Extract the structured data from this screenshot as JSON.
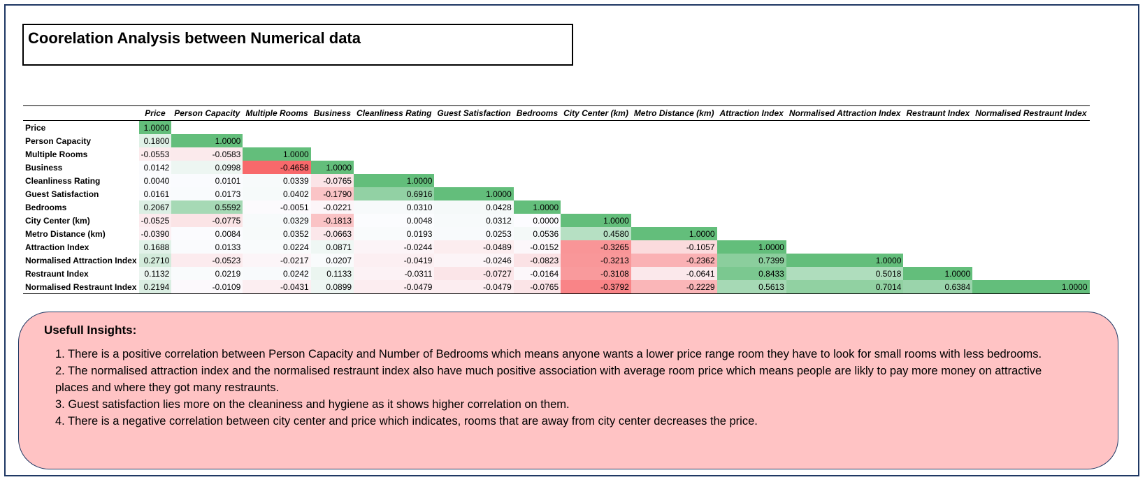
{
  "title": "Coorelation Analysis between Numerical data",
  "columns": [
    "Price",
    "Person Capacity",
    "Multiple Rooms",
    "Business",
    "Cleanliness Rating",
    "Guest Satisfaction",
    "Bedrooms",
    "City Center (km)",
    "Metro Distance (km)",
    "Attraction Index",
    "Normalised Attraction Index",
    "Restraunt Index",
    "Normalised Restraunt Index"
  ],
  "rows": [
    {
      "label": "Price",
      "values": [
        "1.0000"
      ]
    },
    {
      "label": "Person Capacity",
      "values": [
        "0.1800",
        "1.0000"
      ]
    },
    {
      "label": "Multiple Rooms",
      "values": [
        "-0.0553",
        "-0.0583",
        "1.0000"
      ]
    },
    {
      "label": "Business",
      "values": [
        "0.0142",
        "0.0998",
        "-0.4658",
        "1.0000"
      ]
    },
    {
      "label": "Cleanliness Rating",
      "values": [
        "0.0040",
        "0.0101",
        "0.0339",
        "-0.0765",
        "1.0000"
      ]
    },
    {
      "label": "Guest Satisfaction",
      "values": [
        "0.0161",
        "0.0173",
        "0.0402",
        "-0.1790",
        "0.6916",
        "1.0000"
      ]
    },
    {
      "label": "Bedrooms",
      "values": [
        "0.2067",
        "0.5592",
        "-0.0051",
        "-0.0221",
        "0.0310",
        "0.0428",
        "1.0000"
      ]
    },
    {
      "label": "City Center (km)",
      "values": [
        "-0.0525",
        "-0.0775",
        "0.0329",
        "-0.1813",
        "0.0048",
        "0.0312",
        "0.0000",
        "1.0000"
      ]
    },
    {
      "label": "Metro Distance (km)",
      "values": [
        "-0.0390",
        "0.0084",
        "0.0352",
        "-0.0663",
        "0.0193",
        "0.0253",
        "0.0536",
        "0.4580",
        "1.0000"
      ]
    },
    {
      "label": "Attraction Index",
      "values": [
        "0.1688",
        "0.0133",
        "0.0224",
        "0.0871",
        "-0.0244",
        "-0.0489",
        "-0.0152",
        "-0.3265",
        "-0.1057",
        "1.0000"
      ]
    },
    {
      "label": "Normalised Attraction Index",
      "values": [
        "0.2710",
        "-0.0523",
        "-0.0217",
        "0.0207",
        "-0.0419",
        "-0.0246",
        "-0.0823",
        "-0.3213",
        "-0.2362",
        "0.7399",
        "1.0000"
      ]
    },
    {
      "label": "Restraunt Index",
      "values": [
        "0.1132",
        "0.0219",
        "0.0242",
        "0.1133",
        "-0.0311",
        "-0.0727",
        "-0.0164",
        "-0.3108",
        "-0.0641",
        "0.8433",
        "0.5018",
        "1.0000"
      ]
    },
    {
      "label": "Normalised Restraunt Index",
      "values": [
        "0.2194",
        "-0.0109",
        "-0.0431",
        "0.0899",
        "-0.0479",
        "-0.0479",
        "-0.0765",
        "-0.3792",
        "-0.2229",
        "0.5613",
        "0.7014",
        "0.6384",
        "1.0000"
      ]
    }
  ],
  "heatmap_colors": {
    "positive": "#63be7b",
    "neutral": "#fcfcff",
    "negative": "#f8696b"
  },
  "insights": {
    "title": "Usefull Insights:",
    "items": [
      "1.  There is a positive correlation between Person Capacity and Number of Bedrooms which means anyone wants a lower price range room they have to look for small rooms with less bedrooms.",
      "2. The normalised attraction index and the normalised restraunt index also have much positive association with average room price which means people are likly to pay more money on attractive places and where they got many restraunts.",
      "3. Guest satisfaction lies more on the cleaniness and hygiene as it shows higher correlation on them.",
      "4. There is a negative correlation between city center and price which indicates, rooms that are away from city center decreases the price."
    ]
  },
  "colors": {
    "frame_border": "#1f3864",
    "insights_bg": "#ffc3c4"
  }
}
